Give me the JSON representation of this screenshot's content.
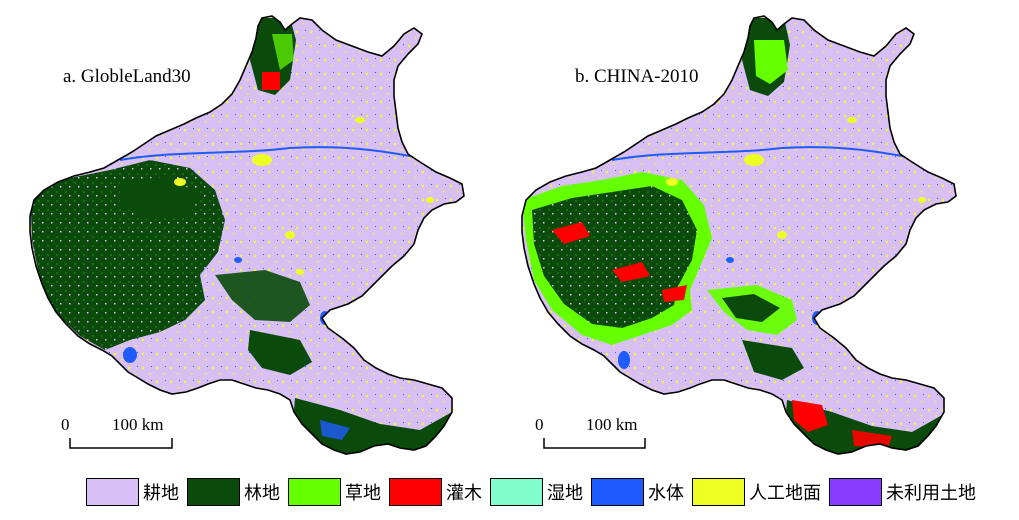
{
  "panels": [
    {
      "title": "a. GlobleLand30",
      "scale_zero": "0",
      "scale_label": "100 km"
    },
    {
      "title": "b. CHINA-2010",
      "scale_zero": "0",
      "scale_label": "100 km"
    }
  ],
  "legend": [
    {
      "label": "耕地",
      "color": "#d8bff5"
    },
    {
      "label": "林地",
      "color": "#0a4a0a"
    },
    {
      "label": "草地",
      "color": "#66ff00"
    },
    {
      "label": "灌木",
      "color": "#ff0000"
    },
    {
      "label": "湿地",
      "color": "#80ffcc"
    },
    {
      "label": "水体",
      "color": "#1e5cff"
    },
    {
      "label": "人工地面",
      "color": "#eeff22"
    },
    {
      "label": "未利用土地",
      "color": "#8a3cff"
    }
  ]
}
